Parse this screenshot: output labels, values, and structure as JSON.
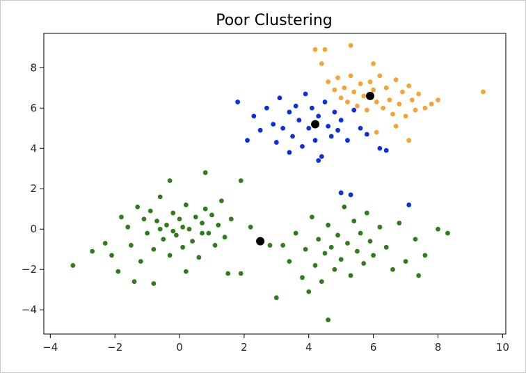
{
  "chart_data": {
    "type": "scatter",
    "title": "Poor Clustering",
    "xlabel": "",
    "ylabel": "",
    "xlim": [
      -4.2,
      10.1
    ],
    "ylim": [
      -5.2,
      9.7
    ],
    "x_ticks": [
      -4,
      -2,
      0,
      2,
      4,
      6,
      8,
      10
    ],
    "y_ticks": [
      -4,
      -2,
      0,
      2,
      4,
      6,
      8
    ],
    "x_tick_labels": [
      "−4",
      "−2",
      "0",
      "2",
      "4",
      "6",
      "8",
      "10"
    ],
    "y_tick_labels": [
      "−4",
      "−2",
      "0",
      "2",
      "4",
      "6",
      "8"
    ],
    "grid": false,
    "colors": {
      "green": "#2e7d1a",
      "blue": "#0a2ee6",
      "orange": "#f5a431",
      "centroid": "#000000"
    },
    "series": [
      {
        "color": "green",
        "points": [
          [
            -3.3,
            -1.8
          ],
          [
            -2.7,
            -1.1
          ],
          [
            -2.3,
            -0.7
          ],
          [
            -2.1,
            -1.3
          ],
          [
            -1.9,
            -2.1
          ],
          [
            -1.8,
            0.6
          ],
          [
            -1.6,
            0.1
          ],
          [
            -1.5,
            -0.8
          ],
          [
            -1.3,
            1.1
          ],
          [
            -1.2,
            -1.6
          ],
          [
            -1.0,
            -0.2
          ],
          [
            -0.9,
            0.9
          ],
          [
            -0.8,
            -1.0
          ],
          [
            -0.7,
            0.4
          ],
          [
            -0.6,
            1.6
          ],
          [
            -0.5,
            -0.5
          ],
          [
            -0.4,
            0.2
          ],
          [
            -0.3,
            -1.3
          ],
          [
            -0.2,
            0.8
          ],
          [
            -0.1,
            -0.3
          ],
          [
            0.0,
            0.5
          ],
          [
            0.1,
            -0.9
          ],
          [
            0.2,
            1.2
          ],
          [
            0.3,
            0.0
          ],
          [
            0.4,
            -0.6
          ],
          [
            0.5,
            0.6
          ],
          [
            0.6,
            -1.4
          ],
          [
            0.7,
            0.3
          ],
          [
            0.8,
            1.0
          ],
          [
            0.9,
            -0.2
          ],
          [
            1.0,
            0.7
          ],
          [
            1.1,
            -0.8
          ],
          [
            1.2,
            0.2
          ],
          [
            1.3,
            1.4
          ],
          [
            1.4,
            -0.4
          ],
          [
            -0.3,
            2.4
          ],
          [
            0.8,
            2.8
          ],
          [
            1.9,
            2.4
          ],
          [
            -1.4,
            -2.6
          ],
          [
            -0.8,
            -2.7
          ],
          [
            0.2,
            -2.1
          ],
          [
            1.5,
            -2.2
          ],
          [
            1.9,
            -2.2
          ],
          [
            -0.6,
            0.0
          ],
          [
            0.1,
            0.1
          ],
          [
            -1.1,
            0.5
          ],
          [
            0.7,
            -0.2
          ],
          [
            1.6,
            0.5
          ],
          [
            2.2,
            0.1
          ],
          [
            -0.2,
            -0.1
          ],
          [
            3.2,
            -0.8
          ],
          [
            3.4,
            -1.6
          ],
          [
            3.6,
            -0.2
          ],
          [
            3.8,
            -2.4
          ],
          [
            3.9,
            -1.0
          ],
          [
            4.0,
            -3.1
          ],
          [
            4.1,
            0.6
          ],
          [
            4.2,
            -1.8
          ],
          [
            4.3,
            -0.5
          ],
          [
            4.4,
            -2.6
          ],
          [
            4.5,
            -1.2
          ],
          [
            4.6,
            0.2
          ],
          [
            4.7,
            -0.9
          ],
          [
            4.8,
            -2.0
          ],
          [
            4.9,
            -0.3
          ],
          [
            5.0,
            -1.5
          ],
          [
            5.1,
            1.1
          ],
          [
            5.2,
            -0.7
          ],
          [
            5.3,
            -2.3
          ],
          [
            5.4,
            0.4
          ],
          [
            5.5,
            -1.1
          ],
          [
            5.6,
            -0.2
          ],
          [
            5.7,
            -1.7
          ],
          [
            5.8,
            0.8
          ],
          [
            5.9,
            -0.6
          ],
          [
            6.0,
            -1.3
          ],
          [
            6.2,
            0.1
          ],
          [
            6.4,
            -0.9
          ],
          [
            6.6,
            -2.0
          ],
          [
            6.8,
            0.3
          ],
          [
            7.0,
            -1.6
          ],
          [
            7.3,
            -0.5
          ],
          [
            7.6,
            -1.3
          ],
          [
            8.0,
            0.0
          ],
          [
            8.3,
            -0.2
          ],
          [
            5.0,
            1.8
          ],
          [
            4.6,
            -4.5
          ],
          [
            3.0,
            -3.4
          ],
          [
            7.4,
            -2.3
          ],
          [
            2.8,
            -0.8
          ]
        ]
      },
      {
        "color": "blue",
        "points": [
          [
            1.8,
            6.3
          ],
          [
            2.1,
            4.4
          ],
          [
            2.3,
            5.6
          ],
          [
            2.5,
            4.9
          ],
          [
            2.7,
            6.0
          ],
          [
            2.9,
            5.2
          ],
          [
            3.0,
            4.3
          ],
          [
            3.1,
            6.5
          ],
          [
            3.2,
            5.0
          ],
          [
            3.4,
            5.8
          ],
          [
            3.5,
            4.6
          ],
          [
            3.6,
            6.1
          ],
          [
            3.7,
            5.4
          ],
          [
            3.8,
            4.1
          ],
          [
            3.9,
            6.7
          ],
          [
            4.0,
            5.0
          ],
          [
            4.1,
            6.0
          ],
          [
            4.2,
            4.4
          ],
          [
            4.3,
            5.6
          ],
          [
            4.4,
            3.6
          ],
          [
            4.5,
            6.3
          ],
          [
            4.6,
            5.1
          ],
          [
            4.7,
            4.6
          ],
          [
            4.8,
            5.8
          ],
          [
            4.9,
            4.9
          ],
          [
            5.0,
            5.4
          ],
          [
            5.2,
            4.4
          ],
          [
            5.4,
            5.9
          ],
          [
            5.6,
            5.0
          ],
          [
            5.8,
            4.7
          ],
          [
            6.2,
            4.0
          ],
          [
            6.4,
            3.9
          ],
          [
            3.4,
            3.8
          ],
          [
            4.3,
            3.4
          ],
          [
            5.0,
            1.8
          ],
          [
            5.3,
            1.7
          ],
          [
            7.1,
            1.2
          ]
        ]
      },
      {
        "color": "orange",
        "points": [
          [
            4.2,
            8.9
          ],
          [
            4.5,
            8.9
          ],
          [
            4.4,
            8.2
          ],
          [
            5.3,
            9.1
          ],
          [
            6.0,
            8.2
          ],
          [
            4.6,
            7.3
          ],
          [
            4.8,
            6.9
          ],
          [
            4.9,
            7.5
          ],
          [
            5.0,
            6.5
          ],
          [
            5.1,
            7.0
          ],
          [
            5.2,
            6.3
          ],
          [
            5.3,
            7.6
          ],
          [
            5.4,
            6.8
          ],
          [
            5.5,
            6.1
          ],
          [
            5.6,
            7.2
          ],
          [
            5.7,
            6.6
          ],
          [
            5.8,
            5.9
          ],
          [
            5.9,
            7.3
          ],
          [
            6.0,
            6.9
          ],
          [
            6.1,
            6.3
          ],
          [
            6.2,
            7.6
          ],
          [
            6.3,
            6.0
          ],
          [
            6.4,
            7.0
          ],
          [
            6.5,
            6.4
          ],
          [
            6.6,
            5.7
          ],
          [
            6.7,
            7.4
          ],
          [
            6.8,
            6.2
          ],
          [
            6.9,
            6.8
          ],
          [
            7.0,
            5.6
          ],
          [
            7.1,
            7.1
          ],
          [
            7.2,
            6.4
          ],
          [
            7.3,
            5.9
          ],
          [
            7.4,
            6.7
          ],
          [
            7.6,
            6.0
          ],
          [
            7.8,
            6.2
          ],
          [
            8.0,
            6.4
          ],
          [
            7.1,
            4.4
          ],
          [
            9.4,
            6.8
          ],
          [
            6.1,
            4.8
          ],
          [
            6.7,
            5.1
          ]
        ]
      },
      {
        "color": "centroid",
        "points": [
          [
            2.5,
            -0.6
          ],
          [
            4.2,
            5.2
          ],
          [
            5.9,
            6.6
          ]
        ]
      }
    ]
  }
}
